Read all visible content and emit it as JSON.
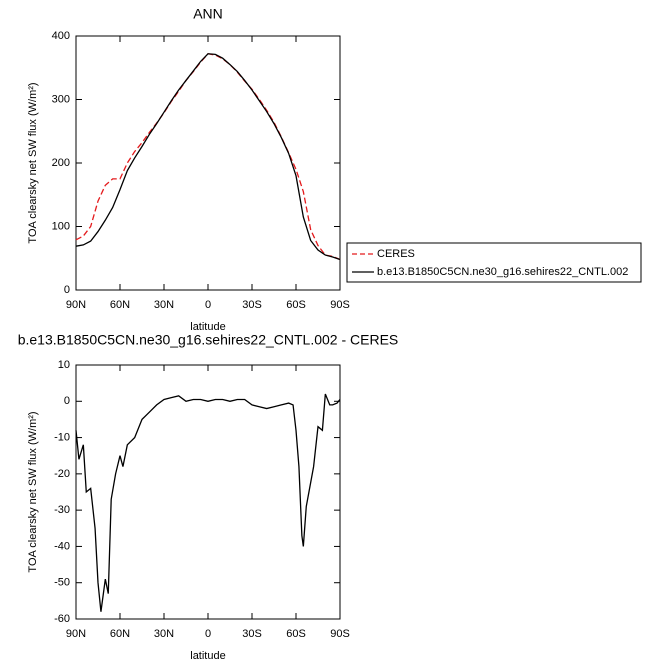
{
  "chart_data": [
    {
      "type": "line",
      "title": "ANN",
      "x_label": "latitude",
      "y_label": "TOA clearsky net SW flux (W/m²)",
      "x": [
        90,
        85,
        80,
        75,
        70,
        65,
        60,
        55,
        50,
        45,
        40,
        35,
        30,
        25,
        20,
        15,
        10,
        5,
        0,
        -5,
        -10,
        -15,
        -20,
        -25,
        -30,
        -35,
        -40,
        -45,
        -50,
        -55,
        -60,
        -65,
        -70,
        -75,
        -80,
        -85,
        -90
      ],
      "series": [
        {
          "name": "CERES",
          "color": "#e41a1c",
          "line_style": "dashed",
          "values": [
            79,
            85,
            100,
            140,
            165,
            175,
            175,
            200,
            218,
            232,
            248,
            263,
            279,
            297,
            313,
            330,
            344,
            359,
            372,
            370,
            364,
            355,
            343,
            329,
            316,
            300,
            283,
            264,
            241,
            216,
            190,
            155,
            95,
            70,
            55,
            53,
            48
          ]
        },
        {
          "name": "b.e13.B1850C5CN.ne30_g16.sehires22_CNTL.002",
          "color": "#000000",
          "line_style": "solid",
          "values": [
            69,
            71,
            77,
            92,
            110,
            130,
            158,
            188,
            208,
            226,
            245,
            262,
            280,
            298,
            315,
            330,
            345,
            360,
            372,
            371,
            365,
            355,
            344,
            330,
            315,
            298,
            281,
            262,
            240,
            215,
            180,
            115,
            78,
            63,
            55,
            52,
            48
          ]
        }
      ],
      "xlim": [
        90,
        -90
      ],
      "xticks": [
        {
          "value": 90,
          "label": "90N"
        },
        {
          "value": 60,
          "label": "60N"
        },
        {
          "value": 30,
          "label": "30N"
        },
        0,
        {
          "value": -30,
          "label": "30S"
        },
        {
          "value": -60,
          "label": "60S"
        },
        {
          "value": -90,
          "label": "90S"
        }
      ],
      "ylim": [
        0,
        400
      ],
      "yticks": [
        0,
        100,
        200,
        300,
        400
      ],
      "legend": "right"
    },
    {
      "type": "line",
      "title": "b.e13.B1850C5CN.ne30_g16.sehires22_CNTL.002 - CERES",
      "x_label": "latitude",
      "y_label": "TOA clearsky net SW flux (W/m²)",
      "x": [
        90,
        88,
        85,
        83,
        80,
        77,
        75,
        73,
        70,
        68,
        66,
        63,
        60,
        58,
        55,
        50,
        45,
        40,
        35,
        30,
        25,
        20,
        15,
        10,
        5,
        0,
        -5,
        -10,
        -15,
        -20,
        -25,
        -30,
        -35,
        -40,
        -45,
        -50,
        -55,
        -58,
        -60,
        -62,
        -64,
        -65,
        -67,
        -72,
        -75,
        -78,
        -80,
        -83,
        -85,
        -88,
        -90
      ],
      "values": [
        -8,
        -16,
        -12,
        -25,
        -24,
        -35,
        -50,
        -58,
        -49,
        -53,
        -27,
        -20,
        -15,
        -18,
        -12,
        -10,
        -5,
        -3,
        -1,
        0.5,
        1,
        1.5,
        0,
        0.5,
        0.5,
        0,
        0.5,
        0.5,
        0,
        0.5,
        0.5,
        -1,
        -1.5,
        -2,
        -1.5,
        -1,
        -0.5,
        -1,
        -8,
        -18,
        -37,
        -40,
        -29,
        -18,
        -7,
        -8,
        2,
        -1,
        -1,
        -0.5,
        0.5
      ],
      "color": "#000000",
      "xlim": [
        90,
        -90
      ],
      "xticks": [
        {
          "value": 90,
          "label": "90N"
        },
        {
          "value": 60,
          "label": "60N"
        },
        {
          "value": 30,
          "label": "30N"
        },
        0,
        {
          "value": -30,
          "label": "30S"
        },
        {
          "value": -60,
          "label": "60S"
        },
        {
          "value": -90,
          "label": "90S"
        }
      ],
      "ylim": [
        -60,
        10
      ],
      "yticks": [
        10,
        0,
        -10,
        -20,
        -30,
        -40,
        -50,
        -60
      ]
    }
  ]
}
